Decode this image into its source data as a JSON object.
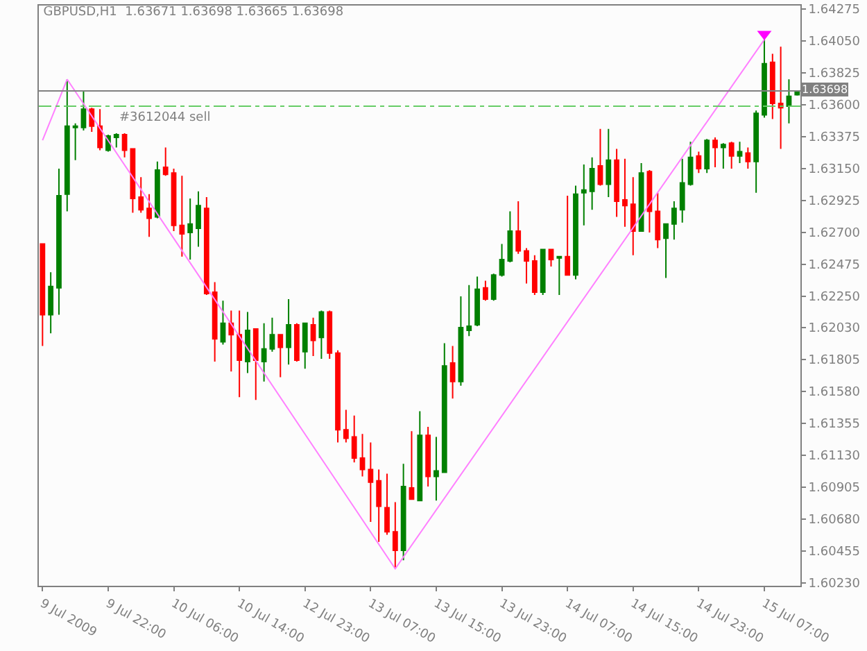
{
  "chart_data": {
    "type": "candlestick",
    "title": "GBPUSD,H1  1.63671 1.63698 1.63665 1.63698",
    "categories": [
      "9 Jul 2009",
      null,
      null,
      null,
      null,
      null,
      null,
      null,
      "9 Jul 22:00",
      null,
      null,
      null,
      null,
      null,
      null,
      null,
      "10 Jul 06:00",
      null,
      null,
      null,
      null,
      null,
      null,
      null,
      "10 Jul 14:00",
      null,
      null,
      null,
      null,
      null,
      null,
      null,
      "12 Jul 23:00",
      null,
      null,
      null,
      null,
      null,
      null,
      null,
      "13 Jul 07:00",
      null,
      null,
      null,
      null,
      null,
      null,
      null,
      "13 Jul 15:00",
      null,
      null,
      null,
      null,
      null,
      null,
      null,
      "13 Jul 23:00",
      null,
      null,
      null,
      null,
      null,
      null,
      null,
      "14 Jul 07:00",
      null,
      null,
      null,
      null,
      null,
      null,
      null,
      "14 Jul 15:00",
      null,
      null,
      null,
      null,
      null,
      null,
      null,
      "14 Jul 23:00",
      null,
      null,
      null,
      null,
      null,
      null,
      null,
      "15 Jul 07:00",
      null,
      null,
      null,
      null
    ],
    "colors": [
      "#ff0000",
      "#008000",
      "#008000",
      "#008000",
      "#008000",
      "#008000",
      "#ff0000",
      "#ff0000",
      "#008000",
      "#008000",
      "#ff0000",
      "#ff0000",
      "#ff0000",
      "#ff0000",
      "#008000",
      "#ff0000",
      "#ff0000",
      "#ff0000",
      "#008000",
      "#008000",
      "#ff0000",
      "#ff0000",
      "#008000",
      "#ff0000",
      "#ff0000",
      "#008000",
      "#ff0000",
      "#008000",
      "#008000",
      "#ff0000",
      "#008000",
      "#ff0000",
      "#008000",
      "#ff0000",
      "#008000",
      "#ff0000",
      "#ff0000",
      "#ff0000",
      "#ff0000",
      "#ff0000",
      "#ff0000",
      "#ff0000",
      "#ff0000",
      "#ff0000",
      "#008000",
      "#ff0000",
      "#008000",
      "#ff0000",
      "#008000",
      "#008000",
      "#ff0000",
      "#008000",
      "#008000",
      "#008000",
      "#ff0000",
      "#008000",
      "#008000",
      "#008000",
      "#ff0000",
      "#ff0000",
      "#ff0000",
      "#008000",
      "#ff0000",
      "#008000",
      "#ff0000",
      "#008000",
      "#008000",
      "#008000",
      "#ff0000",
      "#008000",
      "#ff0000",
      "#ff0000",
      "#ff0000",
      "#008000",
      "#ff0000",
      "#ff0000",
      "#008000",
      "#008000",
      "#008000",
      "#008000",
      "#ff0000",
      "#008000",
      "#ff0000",
      "#008000",
      "#ff0000",
      "#008000",
      "#ff0000",
      "#008000",
      "#008000",
      "#ff0000",
      "#ff0000",
      "#008000",
      "#008000"
    ],
    "ohlc": [
      [
        1.6262,
        1.6262,
        1.619,
        1.6212
      ],
      [
        1.6212,
        1.6242,
        1.6199,
        1.6232
      ],
      [
        1.6231,
        1.6315,
        1.6212,
        1.6296
      ],
      [
        1.6297,
        1.6378,
        1.6285,
        1.6345
      ],
      [
        1.6344,
        1.6347,
        1.6321,
        1.6345
      ],
      [
        1.6344,
        1.637,
        1.6342,
        1.6357
      ],
      [
        1.6357,
        1.6358,
        1.6341,
        1.6345
      ],
      [
        1.6345,
        1.6357,
        1.6328,
        1.633
      ],
      [
        1.6328,
        1.6339,
        1.6327,
        1.6338
      ],
      [
        1.6337,
        1.634,
        1.633,
        1.6339
      ],
      [
        1.6339,
        1.634,
        1.6323,
        1.6328
      ],
      [
        1.6329,
        1.6329,
        1.6284,
        1.6294
      ],
      [
        1.6295,
        1.6309,
        1.6284,
        1.6286
      ],
      [
        1.6287,
        1.6297,
        1.6267,
        1.628
      ],
      [
        1.6281,
        1.632,
        1.628,
        1.6314
      ],
      [
        1.6316,
        1.633,
        1.631,
        1.6311
      ],
      [
        1.6312,
        1.6315,
        1.6271,
        1.6275
      ],
      [
        1.6275,
        1.631,
        1.6253,
        1.6269
      ],
      [
        1.627,
        1.6294,
        1.6251,
        1.6276
      ],
      [
        1.6273,
        1.6299,
        1.626,
        1.6289
      ],
      [
        1.6287,
        1.6295,
        1.6226,
        1.6227
      ],
      [
        1.6228,
        1.6235,
        1.6179,
        1.6195
      ],
      [
        1.6193,
        1.6222,
        1.6191,
        1.6206
      ],
      [
        1.6206,
        1.6215,
        1.6172,
        1.6198
      ],
      [
        1.6198,
        1.6215,
        1.6154,
        1.618
      ],
      [
        1.6179,
        1.6214,
        1.6171,
        1.6201
      ],
      [
        1.6202,
        1.6202,
        1.6152,
        1.618
      ],
      [
        1.6179,
        1.6206,
        1.6165,
        1.6188
      ],
      [
        1.6188,
        1.621,
        1.6186,
        1.6198
      ],
      [
        1.6198,
        1.6198,
        1.6168,
        1.6189
      ],
      [
        1.6189,
        1.6223,
        1.6177,
        1.6205
      ],
      [
        1.6205,
        1.6206,
        1.6179,
        1.618
      ],
      [
        1.6186,
        1.6206,
        1.6174,
        1.6206
      ],
      [
        1.6205,
        1.621,
        1.6183,
        1.6194
      ],
      [
        1.6196,
        1.6215,
        1.6181,
        1.6214
      ],
      [
        1.6214,
        1.6215,
        1.6181,
        1.6185
      ],
      [
        1.6185,
        1.6187,
        1.6122,
        1.6131
      ],
      [
        1.6131,
        1.6145,
        1.6122,
        1.6125
      ],
      [
        1.6126,
        1.6141,
        1.6108,
        1.6111
      ],
      [
        1.6111,
        1.6128,
        1.6098,
        1.6103
      ],
      [
        1.6103,
        1.6122,
        1.6066,
        1.6094
      ],
      [
        1.6095,
        1.6103,
        1.6052,
        1.6077
      ],
      [
        1.6076,
        1.61,
        1.6057,
        1.6059
      ],
      [
        1.6059,
        1.608,
        1.6033,
        1.6046
      ],
      [
        1.6046,
        1.6107,
        1.6039,
        1.6091
      ],
      [
        1.609,
        1.613,
        1.6082,
        1.6082
      ],
      [
        1.6081,
        1.6144,
        1.6081,
        1.6127
      ],
      [
        1.6127,
        1.6133,
        1.6091,
        1.6098
      ],
      [
        1.6098,
        1.6126,
        1.6081,
        1.6102
      ],
      [
        1.6101,
        1.6192,
        1.6101,
        1.6176
      ],
      [
        1.6178,
        1.619,
        1.6153,
        1.6165
      ],
      [
        1.6165,
        1.6225,
        1.6162,
        1.6203
      ],
      [
        1.6201,
        1.6233,
        1.6197,
        1.6204
      ],
      [
        1.6205,
        1.6239,
        1.6204,
        1.623
      ],
      [
        1.6231,
        1.6236,
        1.6222,
        1.6223
      ],
      [
        1.6223,
        1.6241,
        1.6222,
        1.624
      ],
      [
        1.624,
        1.6262,
        1.6239,
        1.6251
      ],
      [
        1.625,
        1.6285,
        1.6249,
        1.6271
      ],
      [
        1.6271,
        1.6292,
        1.6255,
        1.6257
      ],
      [
        1.6257,
        1.6259,
        1.6234,
        1.625
      ],
      [
        1.625,
        1.6254,
        1.6226,
        1.6228
      ],
      [
        1.6228,
        1.6258,
        1.6226,
        1.6258
      ],
      [
        1.6258,
        1.6258,
        1.6246,
        1.6251
      ],
      [
        1.6252,
        1.6253,
        1.6226,
        1.6253
      ],
      [
        1.6253,
        1.6296,
        1.624,
        1.624
      ],
      [
        1.624,
        1.6303,
        1.6237,
        1.6297
      ],
      [
        1.6298,
        1.6318,
        1.6275,
        1.63
      ],
      [
        1.6299,
        1.6323,
        1.6286,
        1.6315
      ],
      [
        1.6317,
        1.6343,
        1.6303,
        1.6304
      ],
      [
        1.6304,
        1.6343,
        1.6295,
        1.6321
      ],
      [
        1.6321,
        1.6329,
        1.6281,
        1.6292
      ],
      [
        1.6293,
        1.6322,
        1.6274,
        1.6289
      ],
      [
        1.629,
        1.6309,
        1.6254,
        1.6271
      ],
      [
        1.6271,
        1.6319,
        1.6271,
        1.6312
      ],
      [
        1.6313,
        1.6314,
        1.627,
        1.6285
      ],
      [
        1.6285,
        1.6298,
        1.6259,
        1.6265
      ],
      [
        1.6266,
        1.6276,
        1.6238,
        1.6276
      ],
      [
        1.6276,
        1.6292,
        1.6265,
        1.6287
      ],
      [
        1.6286,
        1.6322,
        1.6277,
        1.6305
      ],
      [
        1.6304,
        1.6334,
        1.6303,
        1.6323
      ],
      [
        1.6324,
        1.6327,
        1.6312,
        1.6315
      ],
      [
        1.6315,
        1.6336,
        1.6312,
        1.6335
      ],
      [
        1.6335,
        1.6337,
        1.6316,
        1.633
      ],
      [
        1.633,
        1.6333,
        1.6315,
        1.6332
      ],
      [
        1.6333,
        1.6334,
        1.6315,
        1.6324
      ],
      [
        1.6324,
        1.6334,
        1.6319,
        1.6327
      ],
      [
        1.6326,
        1.633,
        1.6315,
        1.632
      ],
      [
        1.632,
        1.6356,
        1.6298,
        1.6354
      ],
      [
        1.6353,
        1.6406,
        1.6351,
        1.6389
      ],
      [
        1.639,
        1.6396,
        1.635,
        1.6361
      ],
      [
        1.6361,
        1.6401,
        1.6329,
        1.6358
      ],
      [
        1.6359,
        1.6378,
        1.6347,
        1.6366
      ],
      [
        1.63671,
        1.63698,
        1.63665,
        1.63698
      ]
    ],
    "series": [
      {
        "type": "line",
        "color": "#ff80ff",
        "values": [
          1.6335,
          null,
          null,
          1.6378,
          null,
          null,
          null,
          null,
          null,
          null,
          null,
          null,
          null,
          null,
          null,
          null,
          null,
          null,
          null,
          null,
          null,
          null,
          null,
          null,
          null,
          null,
          null,
          null,
          null,
          null,
          null,
          null,
          null,
          null,
          null,
          null,
          null,
          null,
          null,
          null,
          null,
          null,
          null,
          1.6033,
          null,
          null,
          null,
          null,
          null,
          null,
          null,
          null,
          null,
          null,
          null,
          null,
          null,
          null,
          null,
          null,
          null,
          null,
          null,
          null,
          null,
          null,
          null,
          null,
          null,
          null,
          null,
          null,
          null,
          null,
          null,
          null,
          null,
          null,
          null,
          null,
          null,
          null,
          null,
          null,
          null,
          null,
          null,
          null,
          1.6406,
          null,
          null,
          null,
          null
        ]
      },
      {
        "type": "scatter",
        "color": "#ff00ff",
        "marker": "triangle",
        "values": [
          null,
          null,
          null,
          null,
          null,
          null,
          null,
          null,
          null,
          null,
          null,
          null,
          null,
          null,
          null,
          null,
          null,
          null,
          null,
          null,
          null,
          null,
          null,
          null,
          null,
          null,
          null,
          null,
          null,
          null,
          null,
          null,
          null,
          null,
          null,
          null,
          null,
          null,
          null,
          null,
          null,
          null,
          null,
          null,
          null,
          null,
          null,
          null,
          null,
          null,
          null,
          null,
          null,
          null,
          null,
          null,
          null,
          null,
          null,
          null,
          null,
          null,
          null,
          null,
          null,
          null,
          null,
          null,
          null,
          null,
          null,
          null,
          null,
          null,
          null,
          null,
          null,
          null,
          null,
          null,
          null,
          null,
          null,
          null,
          null,
          null,
          null,
          null,
          1.641,
          null,
          null,
          null,
          null
        ]
      }
    ],
    "ref_lines": [
      {
        "axis": "y",
        "value": 1.63698,
        "label": "1.63698",
        "color": "#808080",
        "line_style": "solid"
      },
      {
        "axis": "y",
        "value": 1.6359,
        "label": "#3612044 sell",
        "color": "#66cc66",
        "line_style": "dashed"
      }
    ],
    "ylim": [
      1.6021,
      1.643
    ],
    "yticks": [
      1.64275,
      {
        "value": 1.6405,
        "label": "1.64050"
      },
      1.63825,
      {
        "value": 1.636,
        "label": "1.63600"
      },
      1.63375,
      {
        "value": 1.6315,
        "label": "1.63150"
      },
      1.62925,
      {
        "value": 1.627,
        "label": "1.62700"
      },
      1.62475,
      {
        "value": 1.6225,
        "label": "1.62250"
      },
      {
        "value": 1.6203,
        "label": "1.62030"
      },
      1.61805,
      {
        "value": 1.6158,
        "label": "1.61580"
      },
      1.61355,
      {
        "value": 1.6113,
        "label": "1.61130"
      },
      1.60905,
      {
        "value": 1.6068,
        "label": "1.60680"
      },
      1.60455,
      {
        "value": 1.6023,
        "label": "1.60230"
      }
    ],
    "tick_labels": true
  }
}
